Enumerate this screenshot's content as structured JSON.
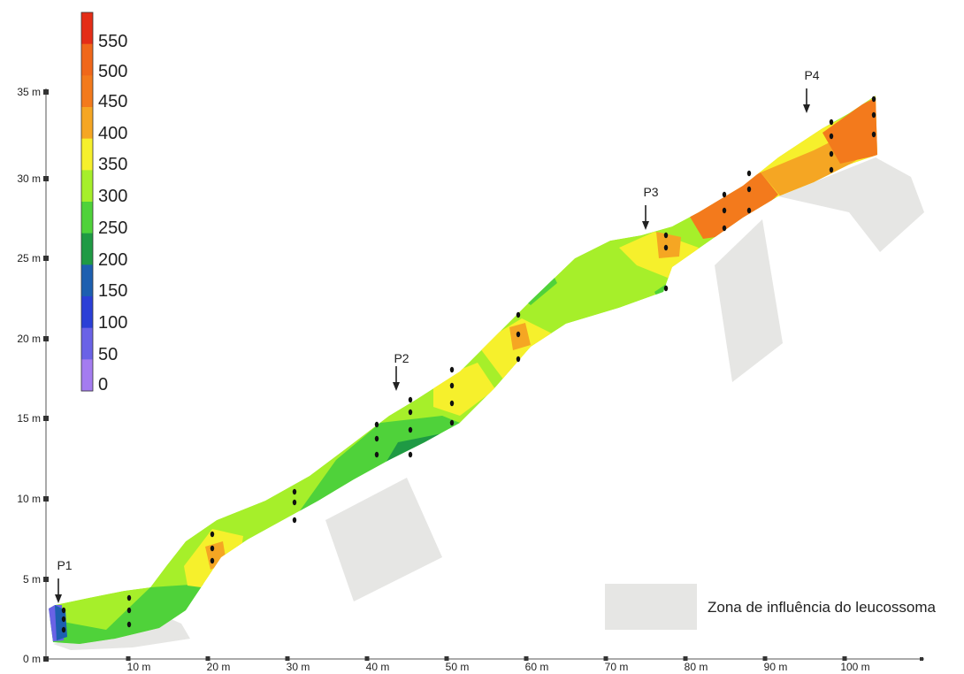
{
  "color_scale": {
    "stops": [
      {
        "label": "0",
        "color": "#a47cf0"
      },
      {
        "label": "50",
        "color": "#6a62e6"
      },
      {
        "label": "100",
        "color": "#2b3fd6"
      },
      {
        "label": "150",
        "color": "#1d5fb0"
      },
      {
        "label": "200",
        "color": "#1f9a44"
      },
      {
        "label": "250",
        "color": "#4fd23a"
      },
      {
        "label": "300",
        "color": "#a6ef2a"
      },
      {
        "label": "350",
        "color": "#f6f02c"
      },
      {
        "label": "400",
        "color": "#f5a623"
      },
      {
        "label": "450",
        "color": "#f37a1c"
      },
      {
        "label": "500",
        "color": "#f0671a"
      },
      {
        "label": "550",
        "color": "#e42d17"
      }
    ]
  },
  "y_axis": {
    "ticks": [
      "0 m",
      "5 m",
      "10 m",
      "15 m",
      "20 m",
      "25 m",
      "30 m",
      "35 m"
    ]
  },
  "x_axis": {
    "ticks": [
      "10 m",
      "20 m",
      "30 m",
      "40 m",
      "50 m",
      "60 m",
      "70 m",
      "80 m",
      "90 m",
      "100 m"
    ]
  },
  "profile_markers": [
    "P1",
    "P2",
    "P3",
    "P4"
  ],
  "legend": {
    "label": "Zona de influência do leucossoma",
    "color": "#e6e6e4"
  }
}
